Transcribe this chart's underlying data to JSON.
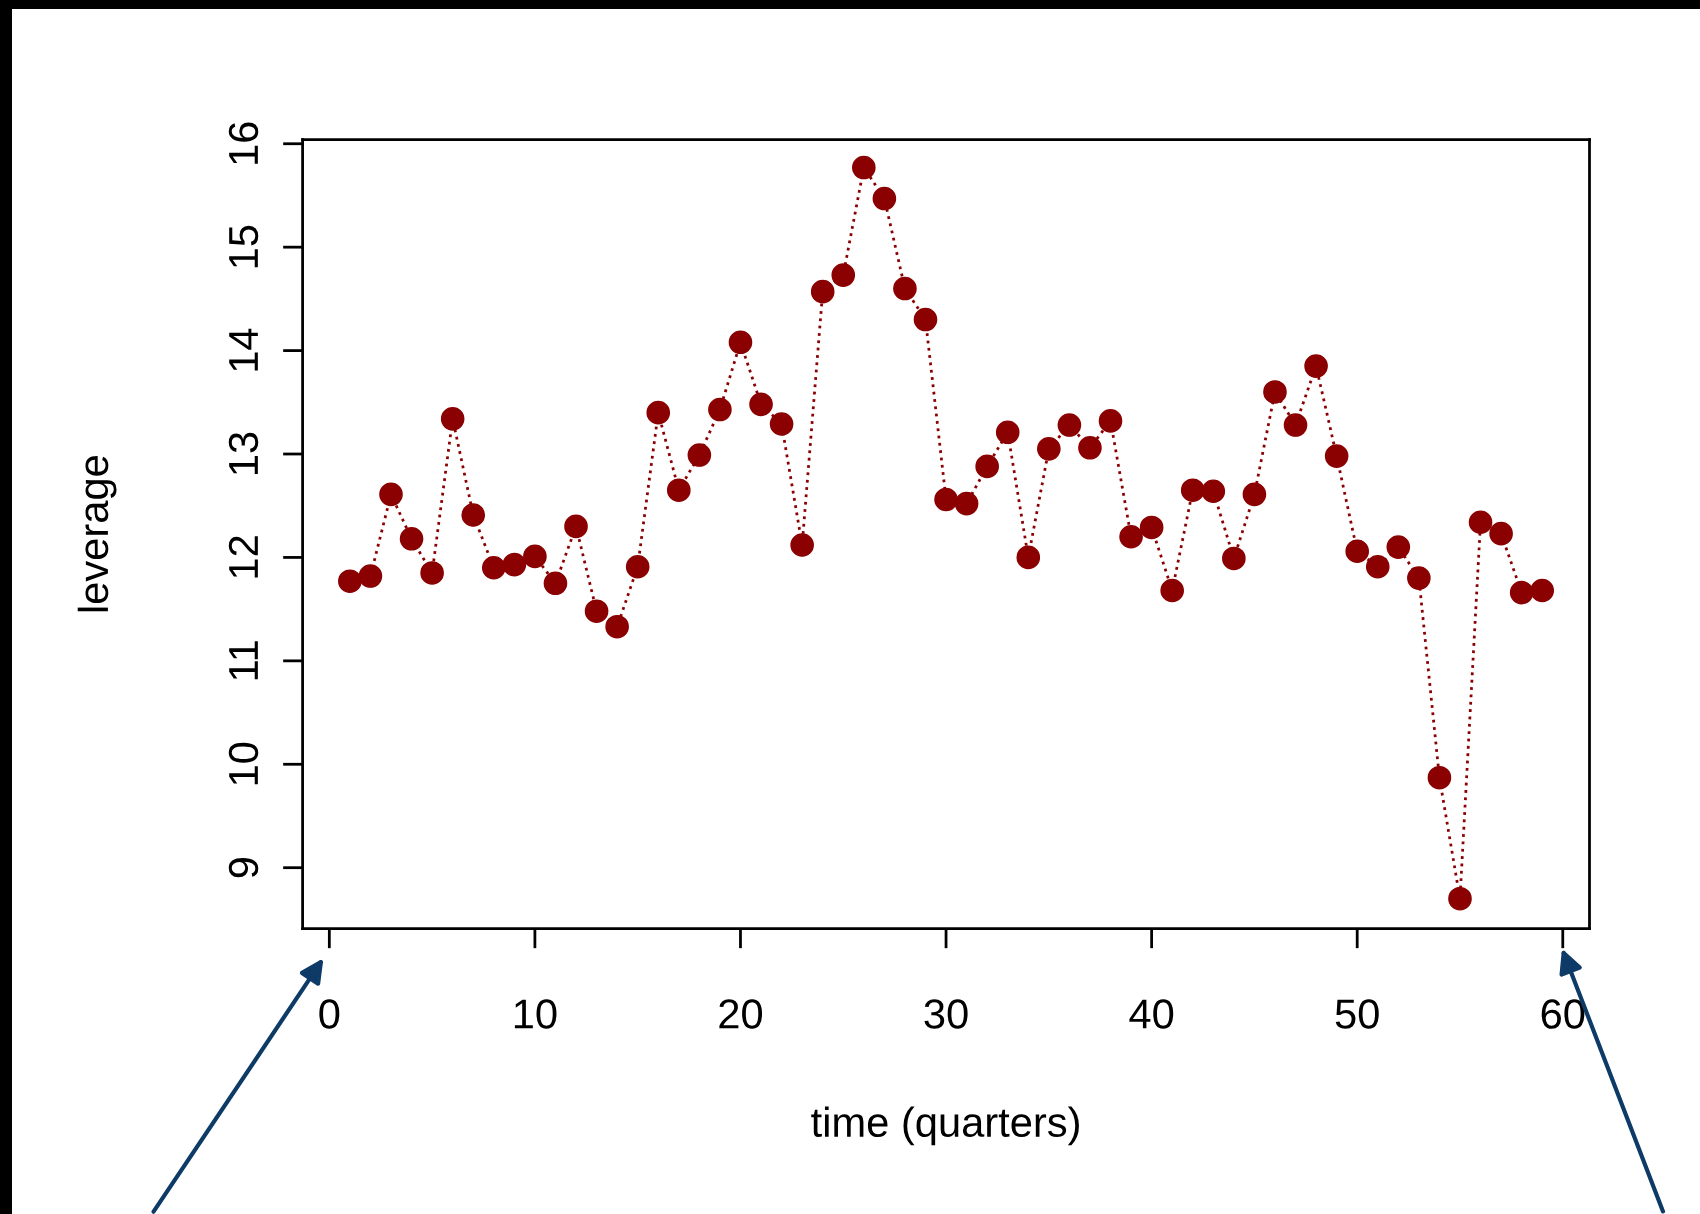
{
  "chart_data": {
    "type": "line",
    "xlabel": "time (quarters)",
    "ylabel": "leverage",
    "marker": "circle",
    "line_style": "dotted",
    "grid": false,
    "x": [
      1,
      2,
      3,
      4,
      5,
      6,
      7,
      8,
      9,
      10,
      11,
      12,
      13,
      14,
      15,
      16,
      17,
      18,
      19,
      20,
      21,
      22,
      23,
      24,
      25,
      26,
      27,
      28,
      29,
      30,
      31,
      32,
      33,
      34,
      35,
      36,
      37,
      38,
      39,
      40,
      41,
      42,
      43,
      44,
      45,
      46,
      47,
      48,
      49,
      50,
      51,
      52,
      53,
      54,
      55,
      56,
      57,
      58,
      59
    ],
    "series": [
      {
        "color": "#8b0000",
        "values": [
          11.77,
          11.82,
          12.61,
          12.18,
          11.85,
          13.34,
          12.41,
          11.9,
          11.93,
          12.01,
          11.75,
          12.3,
          11.48,
          11.33,
          11.91,
          13.4,
          12.65,
          12.99,
          13.43,
          14.08,
          13.48,
          13.29,
          12.12,
          14.57,
          14.73,
          15.77,
          15.47,
          14.6,
          14.3,
          12.56,
          12.52,
          12.88,
          13.21,
          12.0,
          13.05,
          13.28,
          13.06,
          13.32,
          12.2,
          12.29,
          11.68,
          12.65,
          12.64,
          11.99,
          12.61,
          13.6,
          13.28,
          13.85,
          12.98,
          12.06,
          11.91,
          12.1,
          11.8,
          9.87,
          8.7,
          12.34,
          12.23,
          11.66,
          11.68
        ]
      }
    ],
    "xlim": [
      -1.3,
      61.3
    ],
    "ylim": [
      8.41,
      16.04
    ],
    "xticks": [
      0,
      10,
      20,
      30,
      40,
      50,
      60
    ],
    "yticks": [
      9,
      10,
      11,
      12,
      13,
      14,
      15,
      16
    ]
  }
}
